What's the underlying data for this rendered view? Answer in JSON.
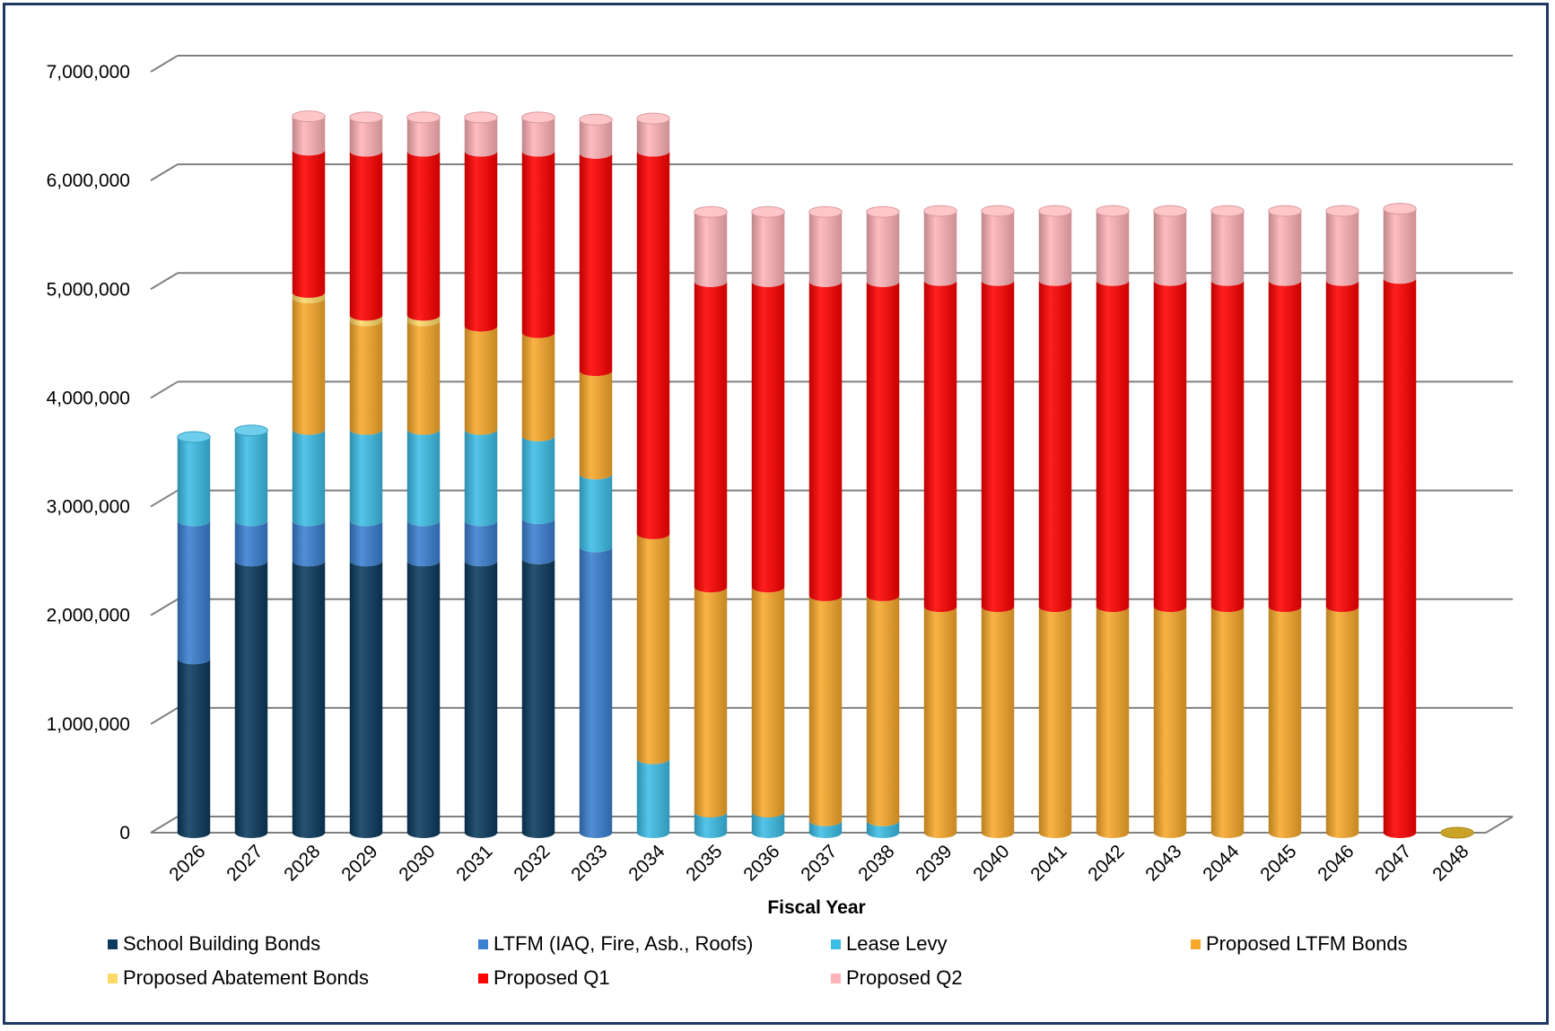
{
  "chart_data": {
    "type": "bar",
    "stacked": true,
    "xlabel": "Fiscal Year",
    "ylabel": "",
    "ylim": [
      0,
      7000000
    ],
    "yticks": [
      "0",
      "1,000,000",
      "2,000,000",
      "3,000,000",
      "4,000,000",
      "5,000,000",
      "6,000,000",
      "7,000,000"
    ],
    "ytick_values": [
      0,
      1000000,
      2000000,
      3000000,
      4000000,
      5000000,
      6000000,
      7000000
    ],
    "grid": true,
    "legend_position": "bottom",
    "categories": [
      "2026",
      "2027",
      "2028",
      "2029",
      "2030",
      "2031",
      "2032",
      "2033",
      "2034",
      "2035",
      "2036",
      "2037",
      "2038",
      "2039",
      "2040",
      "2041",
      "2042",
      "2043",
      "2044",
      "2045",
      "2046",
      "2047",
      "2048"
    ],
    "series": [
      {
        "name": "School Building Bonds",
        "color": "#0b3a5e",
        "values": [
          1600000,
          2500000,
          2500000,
          2500000,
          2500000,
          2500000,
          2520000,
          0,
          0,
          0,
          0,
          0,
          0,
          0,
          0,
          0,
          0,
          0,
          0,
          0,
          0,
          0,
          0
        ]
      },
      {
        "name": "LTFM (IAQ, Fire, Asb., Roofs)",
        "color": "#3a7fd0",
        "values": [
          1270000,
          370000,
          370000,
          370000,
          370000,
          370000,
          370000,
          2630000,
          0,
          0,
          0,
          0,
          0,
          0,
          0,
          0,
          0,
          0,
          0,
          0,
          0,
          0,
          0
        ]
      },
      {
        "name": "Lease Levy",
        "color": "#3dbde6",
        "values": [
          770000,
          830000,
          840000,
          840000,
          840000,
          840000,
          760000,
          670000,
          680000,
          190000,
          190000,
          110000,
          110000,
          0,
          0,
          0,
          0,
          0,
          0,
          0,
          0,
          0,
          0
        ]
      },
      {
        "name": "Proposed LTFM Bonds",
        "color": "#f8a92b",
        "values": [
          0,
          0,
          1210000,
          1000000,
          1000000,
          950000,
          950000,
          950000,
          2070000,
          2070000,
          2070000,
          2070000,
          2070000,
          2080000,
          2080000,
          2080000,
          2080000,
          2080000,
          2080000,
          2080000,
          2080000,
          0,
          0
        ]
      },
      {
        "name": "Proposed Abatement Bonds",
        "color": "#ffd966",
        "values": [
          0,
          0,
          50000,
          50000,
          50000,
          0,
          0,
          0,
          0,
          0,
          0,
          0,
          0,
          0,
          0,
          0,
          0,
          0,
          0,
          0,
          0,
          0,
          0
        ]
      },
      {
        "name": "Proposed Q1",
        "color": "#ff0000",
        "values": [
          0,
          0,
          1310000,
          1510000,
          1510000,
          1610000,
          1670000,
          2000000,
          3520000,
          2810000,
          2810000,
          2890000,
          2890000,
          3000000,
          3000000,
          3000000,
          3000000,
          3000000,
          3000000,
          3000000,
          3000000,
          5100000,
          0
        ]
      },
      {
        "name": "Proposed Q2",
        "color": "#ffb3b8",
        "values": [
          0,
          0,
          310000,
          310000,
          310000,
          310000,
          310000,
          310000,
          300000,
          640000,
          640000,
          640000,
          640000,
          640000,
          640000,
          640000,
          640000,
          640000,
          640000,
          640000,
          640000,
          640000,
          0
        ]
      }
    ]
  }
}
